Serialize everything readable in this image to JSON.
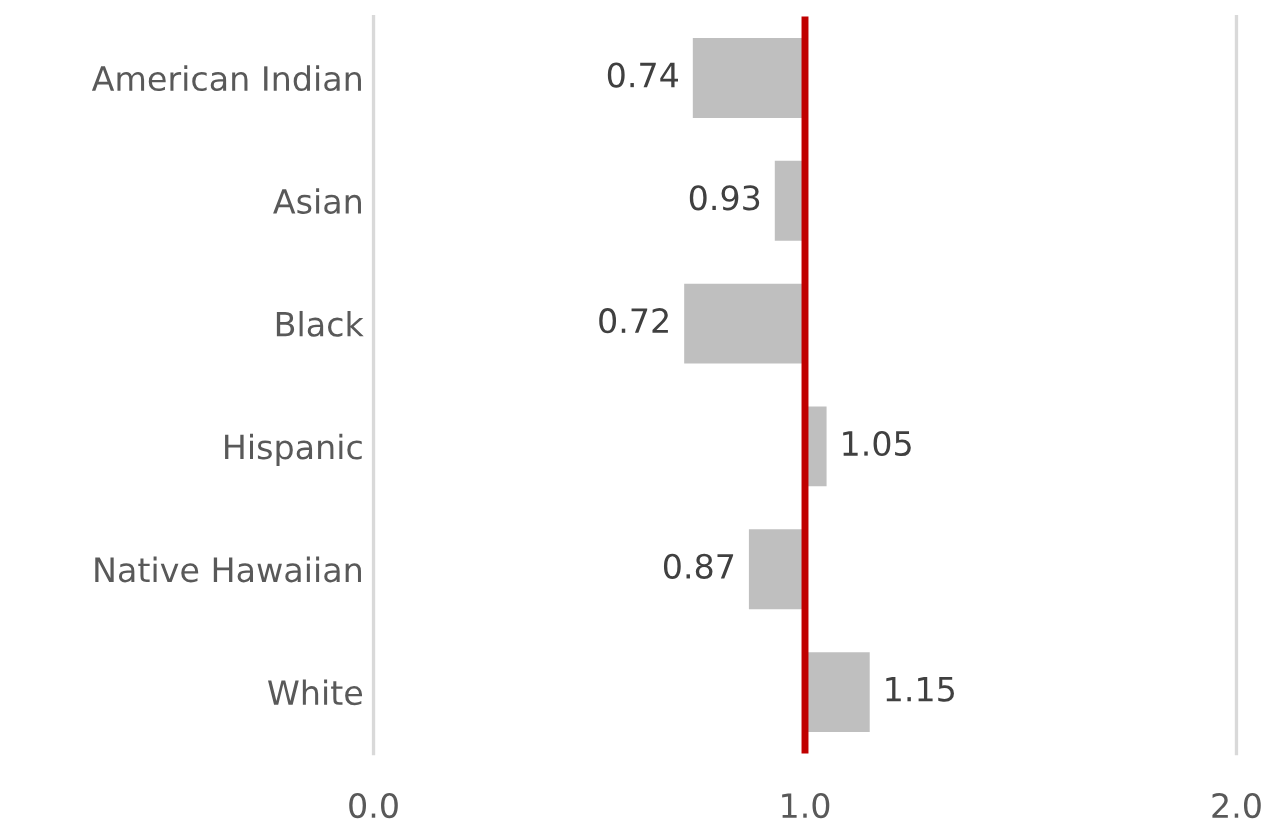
{
  "chart_data": {
    "type": "bar",
    "orientation": "horizontal",
    "categories": [
      "American Indian",
      "Asian",
      "Black",
      "Hispanic",
      "Native Hawaiian",
      "White"
    ],
    "base": [
      1,
      1,
      1,
      1,
      1,
      1
    ],
    "values": [
      -0.26,
      -0.07,
      -0.28,
      0.05,
      -0.13,
      0.15
    ],
    "value_labels": [
      "0.74",
      "0.93",
      "0.72",
      "1.05",
      "0.87",
      "1.15"
    ],
    "color": "#bfbfbf",
    "xlim": [
      0,
      2
    ],
    "xticks": [
      {
        "value": 0,
        "label": "0.0"
      },
      {
        "value": 1,
        "label": "1.0"
      },
      {
        "value": 2,
        "label": "2.0"
      }
    ],
    "ref_lines": [
      {
        "axis": "x",
        "value": 1,
        "color": "#c00000"
      }
    ]
  }
}
